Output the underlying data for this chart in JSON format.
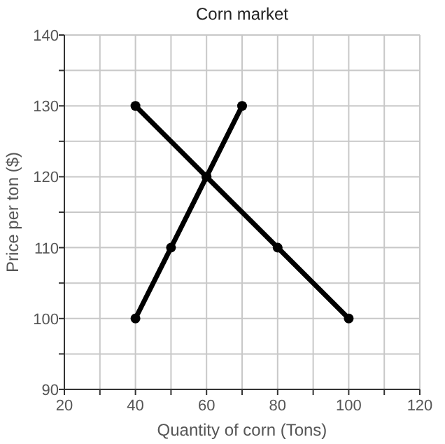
{
  "chart_data": {
    "type": "line",
    "title": "Corn market",
    "xlabel": "Quantity of corn (Tons)",
    "ylabel": "Price per ton ($)",
    "xlim": [
      20,
      120
    ],
    "xticks": [
      20,
      {
        "value": 30,
        "label": null
      },
      40,
      {
        "value": 50,
        "label": null
      },
      60,
      {
        "value": 70,
        "label": null
      },
      80,
      {
        "value": 90,
        "label": null
      },
      100,
      {
        "value": 110,
        "label": null
      },
      120
    ],
    "ylim": [
      90,
      140
    ],
    "yticks": [
      90,
      {
        "value": 95,
        "label": null
      },
      100,
      {
        "value": 105,
        "label": null
      },
      110,
      {
        "value": 115,
        "label": null
      },
      120,
      {
        "value": 125,
        "label": null
      },
      130,
      {
        "value": 135,
        "label": null
      },
      140
    ],
    "grid": true,
    "marker": "circle",
    "line_style": "solid",
    "series": [
      {
        "color": "#000000",
        "x": [
          40,
          50,
          60,
          70
        ],
        "values": [
          100,
          110,
          120,
          130
        ]
      },
      {
        "color": "#000000",
        "x": [
          40,
          60,
          80,
          100
        ],
        "values": [
          130,
          120,
          110,
          100
        ]
      }
    ]
  }
}
